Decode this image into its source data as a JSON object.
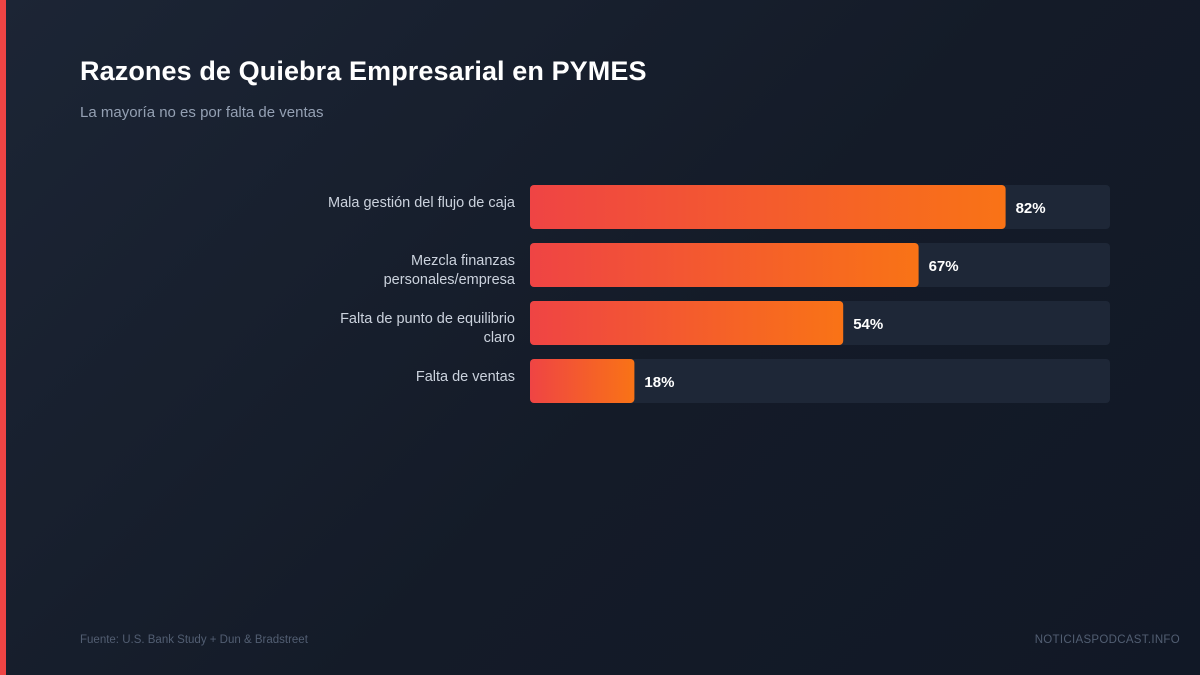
{
  "header": {
    "title": "Razones de Quiebra Empresarial en PYMES",
    "subtitle": "La mayoría no es por falta de ventas"
  },
  "footer": {
    "source": "Fuente: U.S. Bank Study + Dun & Bradstreet",
    "brand": "NOTICIASPODCAST.INFO"
  },
  "colors": {
    "accent": "#ef4444",
    "bar_start": "#ef4444",
    "bar_end": "#f97316",
    "track": "#1e2737",
    "label": "#cbd2dd",
    "value_label": "#ffffff"
  },
  "chart_data": {
    "type": "bar",
    "orientation": "horizontal",
    "title": "Razones de Quiebra Empresarial en PYMES",
    "subtitle": "La mayoría no es por falta de ventas",
    "categories": [
      [
        "Mala gestión del flujo de caja"
      ],
      [
        "Mezcla finanzas",
        "personales/empresa"
      ],
      [
        "Falta de punto de equilibrio",
        "claro"
      ],
      [
        "Falta de ventas"
      ]
    ],
    "values": [
      82,
      67,
      54,
      18
    ],
    "value_labels": [
      "82%",
      "67%",
      "54%",
      "18%"
    ],
    "unit": "%",
    "xlim": [
      0,
      100
    ],
    "grid": false,
    "legend": "none"
  }
}
